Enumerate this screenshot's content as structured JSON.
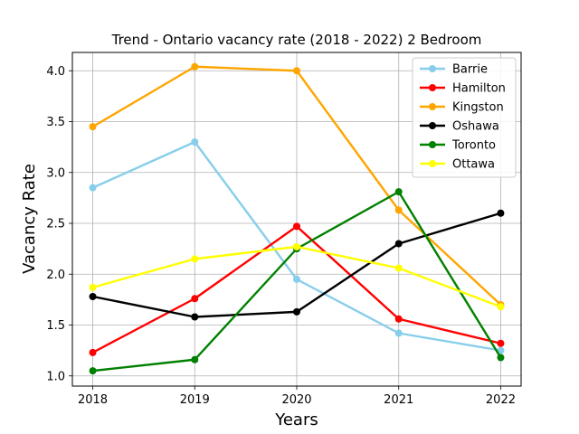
{
  "chart_data": {
    "type": "line",
    "title": "Trend - Ontario vacancy rate (2018 - 2022) 2 Bedroom",
    "xlabel": "Years",
    "ylabel": "Vacancy Rate",
    "x": [
      2018,
      2019,
      2020,
      2021,
      2022
    ],
    "x_tick_labels": [
      "2018",
      "2019",
      "2020",
      "2021",
      "2022"
    ],
    "ylim": [
      0.9,
      4.18
    ],
    "y_ticks": [
      1.0,
      1.5,
      2.0,
      2.5,
      3.0,
      3.5,
      4.0
    ],
    "y_tick_labels": [
      "1.0",
      "1.5",
      "2.0",
      "2.5",
      "3.0",
      "3.5",
      "4.0"
    ],
    "grid": true,
    "legend_position": "top-right",
    "series": [
      {
        "name": "Barrie",
        "color": "#87ceeb",
        "values": [
          2.85,
          3.3,
          1.95,
          1.42,
          1.25
        ]
      },
      {
        "name": "Hamilton",
        "color": "#ff0000",
        "values": [
          1.23,
          1.76,
          2.47,
          1.56,
          1.32
        ]
      },
      {
        "name": "Kingston",
        "color": "#ffa500",
        "values": [
          3.45,
          4.04,
          4.0,
          2.63,
          1.7
        ]
      },
      {
        "name": "Oshawa",
        "color": "#000000",
        "values": [
          1.78,
          1.58,
          1.63,
          2.3,
          2.6
        ]
      },
      {
        "name": "Toronto",
        "color": "#008000",
        "values": [
          1.05,
          1.16,
          2.25,
          2.81,
          1.18
        ]
      },
      {
        "name": "Ottawa",
        "color": "#ffff00",
        "values": [
          1.87,
          2.15,
          2.27,
          2.06,
          1.68
        ]
      }
    ]
  }
}
